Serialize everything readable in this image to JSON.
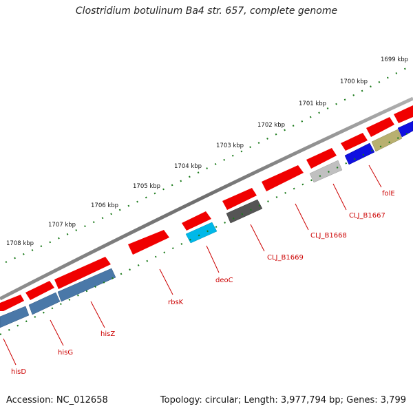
{
  "title": "Clostridium botulinum Ba4 str. 657, complete genome",
  "footer": {
    "accession": "Accession: NC_012658",
    "topology": "Topology: circular; Length: 3,977,794 bp; Genes: 3,799"
  },
  "scale_labels": [
    "1699 kbp",
    "1700 kbp",
    "1701 kbp",
    "1702 kbp",
    "1703 kbp",
    "1704 kbp",
    "1705 kbp",
    "1706 kbp",
    "1707 kbp",
    "1708 kbp"
  ],
  "gene_labels": [
    "folE",
    "CLJ_B1667",
    "CLJ_B1668",
    "CLJ_B1669",
    "deoC",
    "rbsK",
    "hisZ",
    "hisG",
    "hisD"
  ],
  "colors": {
    "forward_gene": "#ff0000",
    "backbone": "#808080",
    "tick": "#1a7a1a",
    "label": "#cc0000"
  }
}
